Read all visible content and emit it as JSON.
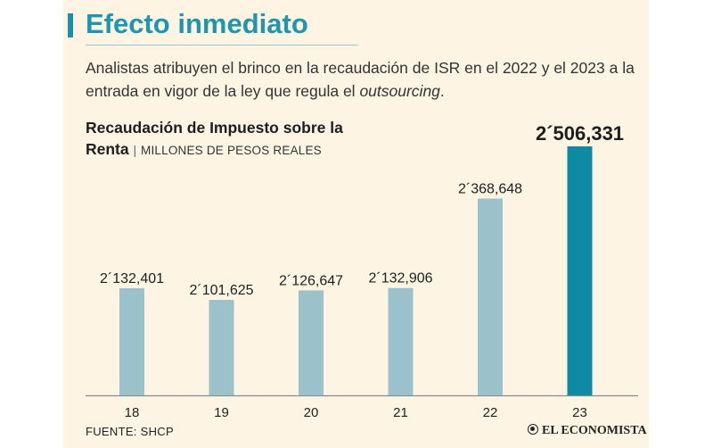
{
  "header": {
    "title": "Efecto inmediato",
    "subtitle_part1": "Analistas atribuyen el brinco en la recaudación de ISR en el 2022 y el 2023 a la entrada en vigor de la ley que regula el ",
    "subtitle_italic": "outsourcing",
    "subtitle_end": "."
  },
  "chart_title": {
    "bold": "Recaudación de Impuesto sobre la Renta",
    "separator": "|",
    "unit": "MILLONES DE PESOS REALES"
  },
  "chart_data": {
    "type": "bar",
    "title": "Recaudación de Impuesto sobre la Renta",
    "ylabel": "MILLONES DE PESOS REALES",
    "categories": [
      "18",
      "19",
      "20",
      "21",
      "22",
      "23"
    ],
    "values": [
      2132401,
      2101625,
      2126647,
      2132906,
      2368648,
      2506331
    ],
    "value_labels": [
      "2´132,401",
      "2´101,625",
      "2´126,647",
      "2´132,906",
      "2´368,648",
      "2´506,331"
    ],
    "highlight_index": 5,
    "colors": {
      "bar": "#9bc2cb",
      "highlight": "#0e8aa4",
      "axis": "#8a8a8a"
    },
    "grid": false,
    "legend": "none"
  },
  "footer": {
    "source": "FUENTE: SHCP",
    "brand": "EL ECONOMISTA"
  }
}
